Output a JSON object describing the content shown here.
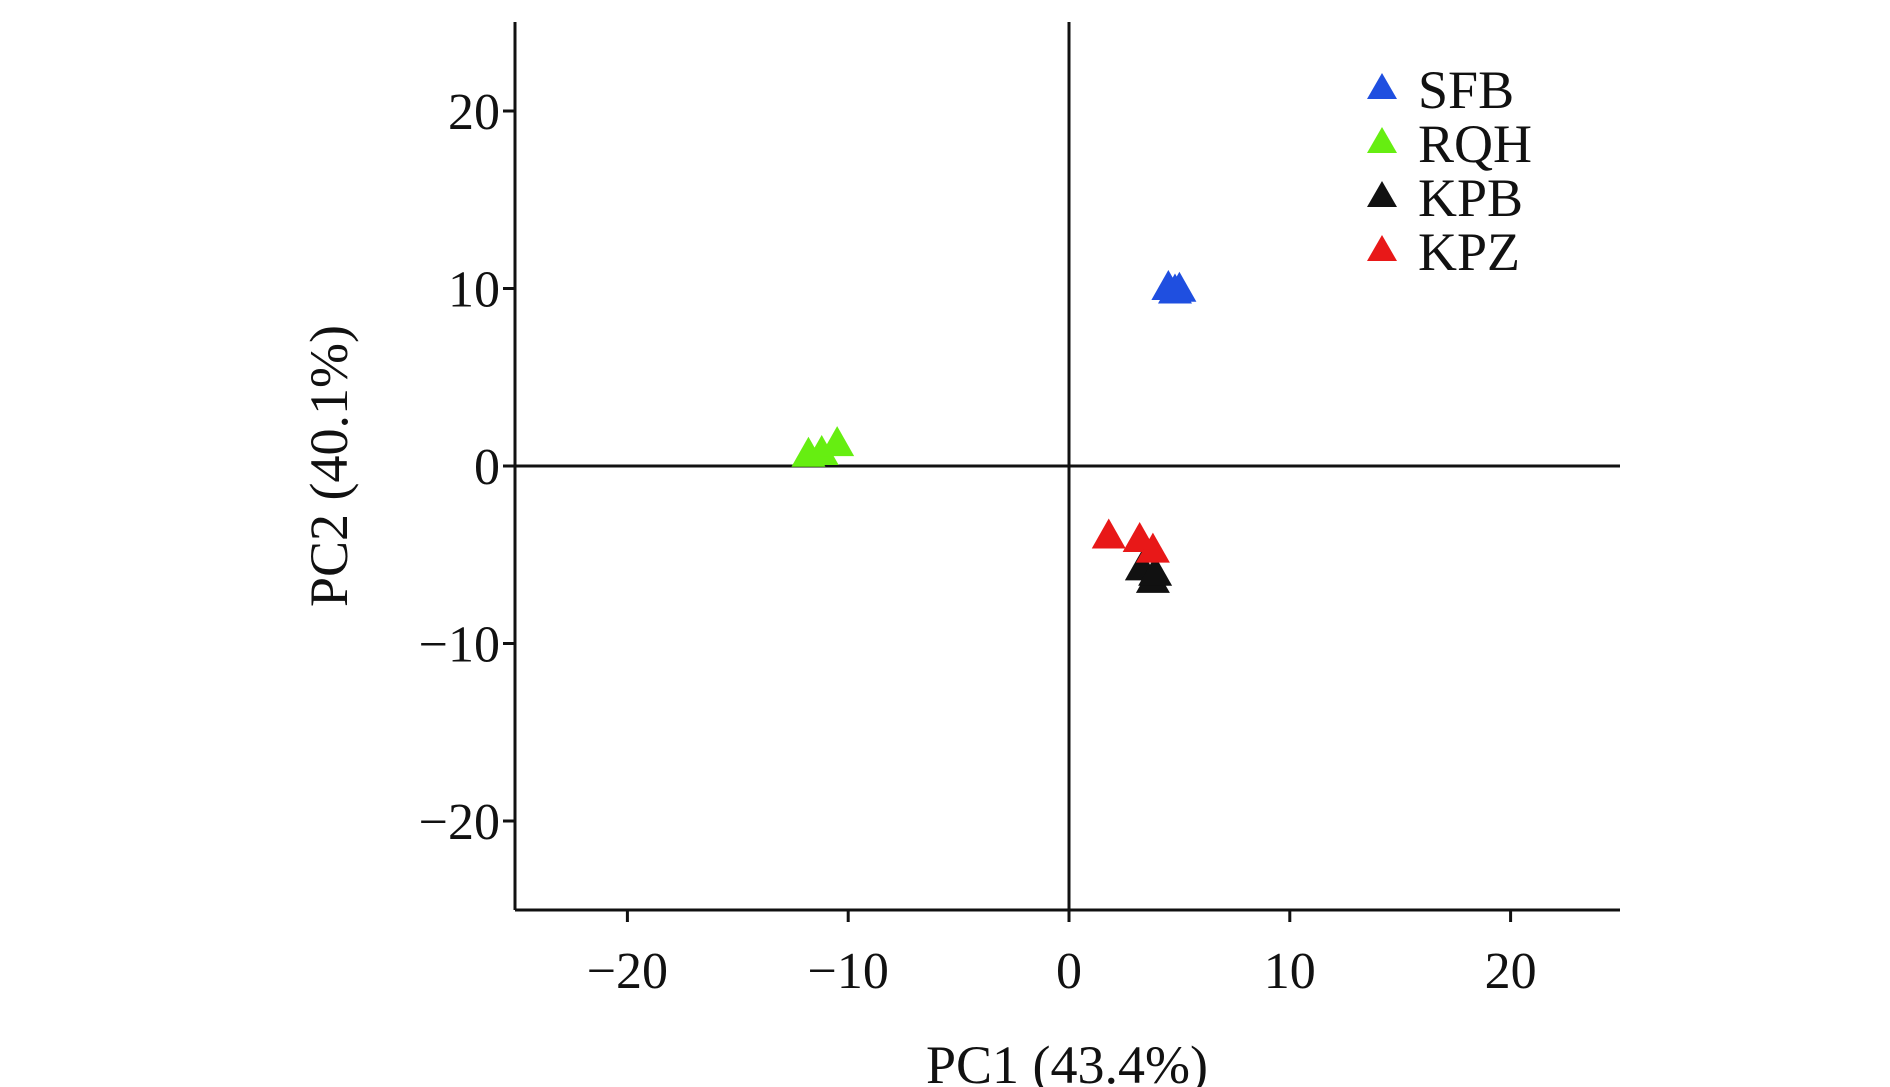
{
  "chart_data": {
    "type": "scatter",
    "title": "",
    "xlabel": "PC1 (43.4%)",
    "ylabel": "PC2 (40.1%)",
    "xlim": [
      -25,
      25
    ],
    "ylim": [
      -25,
      25
    ],
    "xticks": [
      -20,
      -10,
      0,
      10,
      20
    ],
    "yticks": [
      20,
      10,
      0,
      -10,
      -20
    ],
    "xtick_labels": [
      "−20",
      "−10",
      "0",
      "10",
      "20"
    ],
    "ytick_labels": [
      "20",
      "10",
      "0",
      "−10",
      "−20"
    ],
    "reference_lines": {
      "x": 0,
      "y": 0
    },
    "marker": "triangle",
    "legend_position": "top-right",
    "series": [
      {
        "name": "SFB",
        "color": "#1f4fe0",
        "points": [
          [
            4.5,
            10.2
          ],
          [
            5.0,
            10.1
          ],
          [
            4.8,
            10.0
          ]
        ]
      },
      {
        "name": "RQH",
        "color": "#66ee11",
        "points": [
          [
            -11.8,
            0.8
          ],
          [
            -11.2,
            0.9
          ],
          [
            -10.5,
            1.4
          ]
        ]
      },
      {
        "name": "KPB",
        "color": "#111111",
        "points": [
          [
            3.3,
            -5.6
          ],
          [
            3.8,
            -6.3
          ],
          [
            3.9,
            -5.9
          ]
        ]
      },
      {
        "name": "KPZ",
        "color": "#e81818",
        "points": [
          [
            1.8,
            -3.8
          ],
          [
            3.2,
            -4.0
          ],
          [
            3.8,
            -4.6
          ]
        ]
      }
    ]
  }
}
